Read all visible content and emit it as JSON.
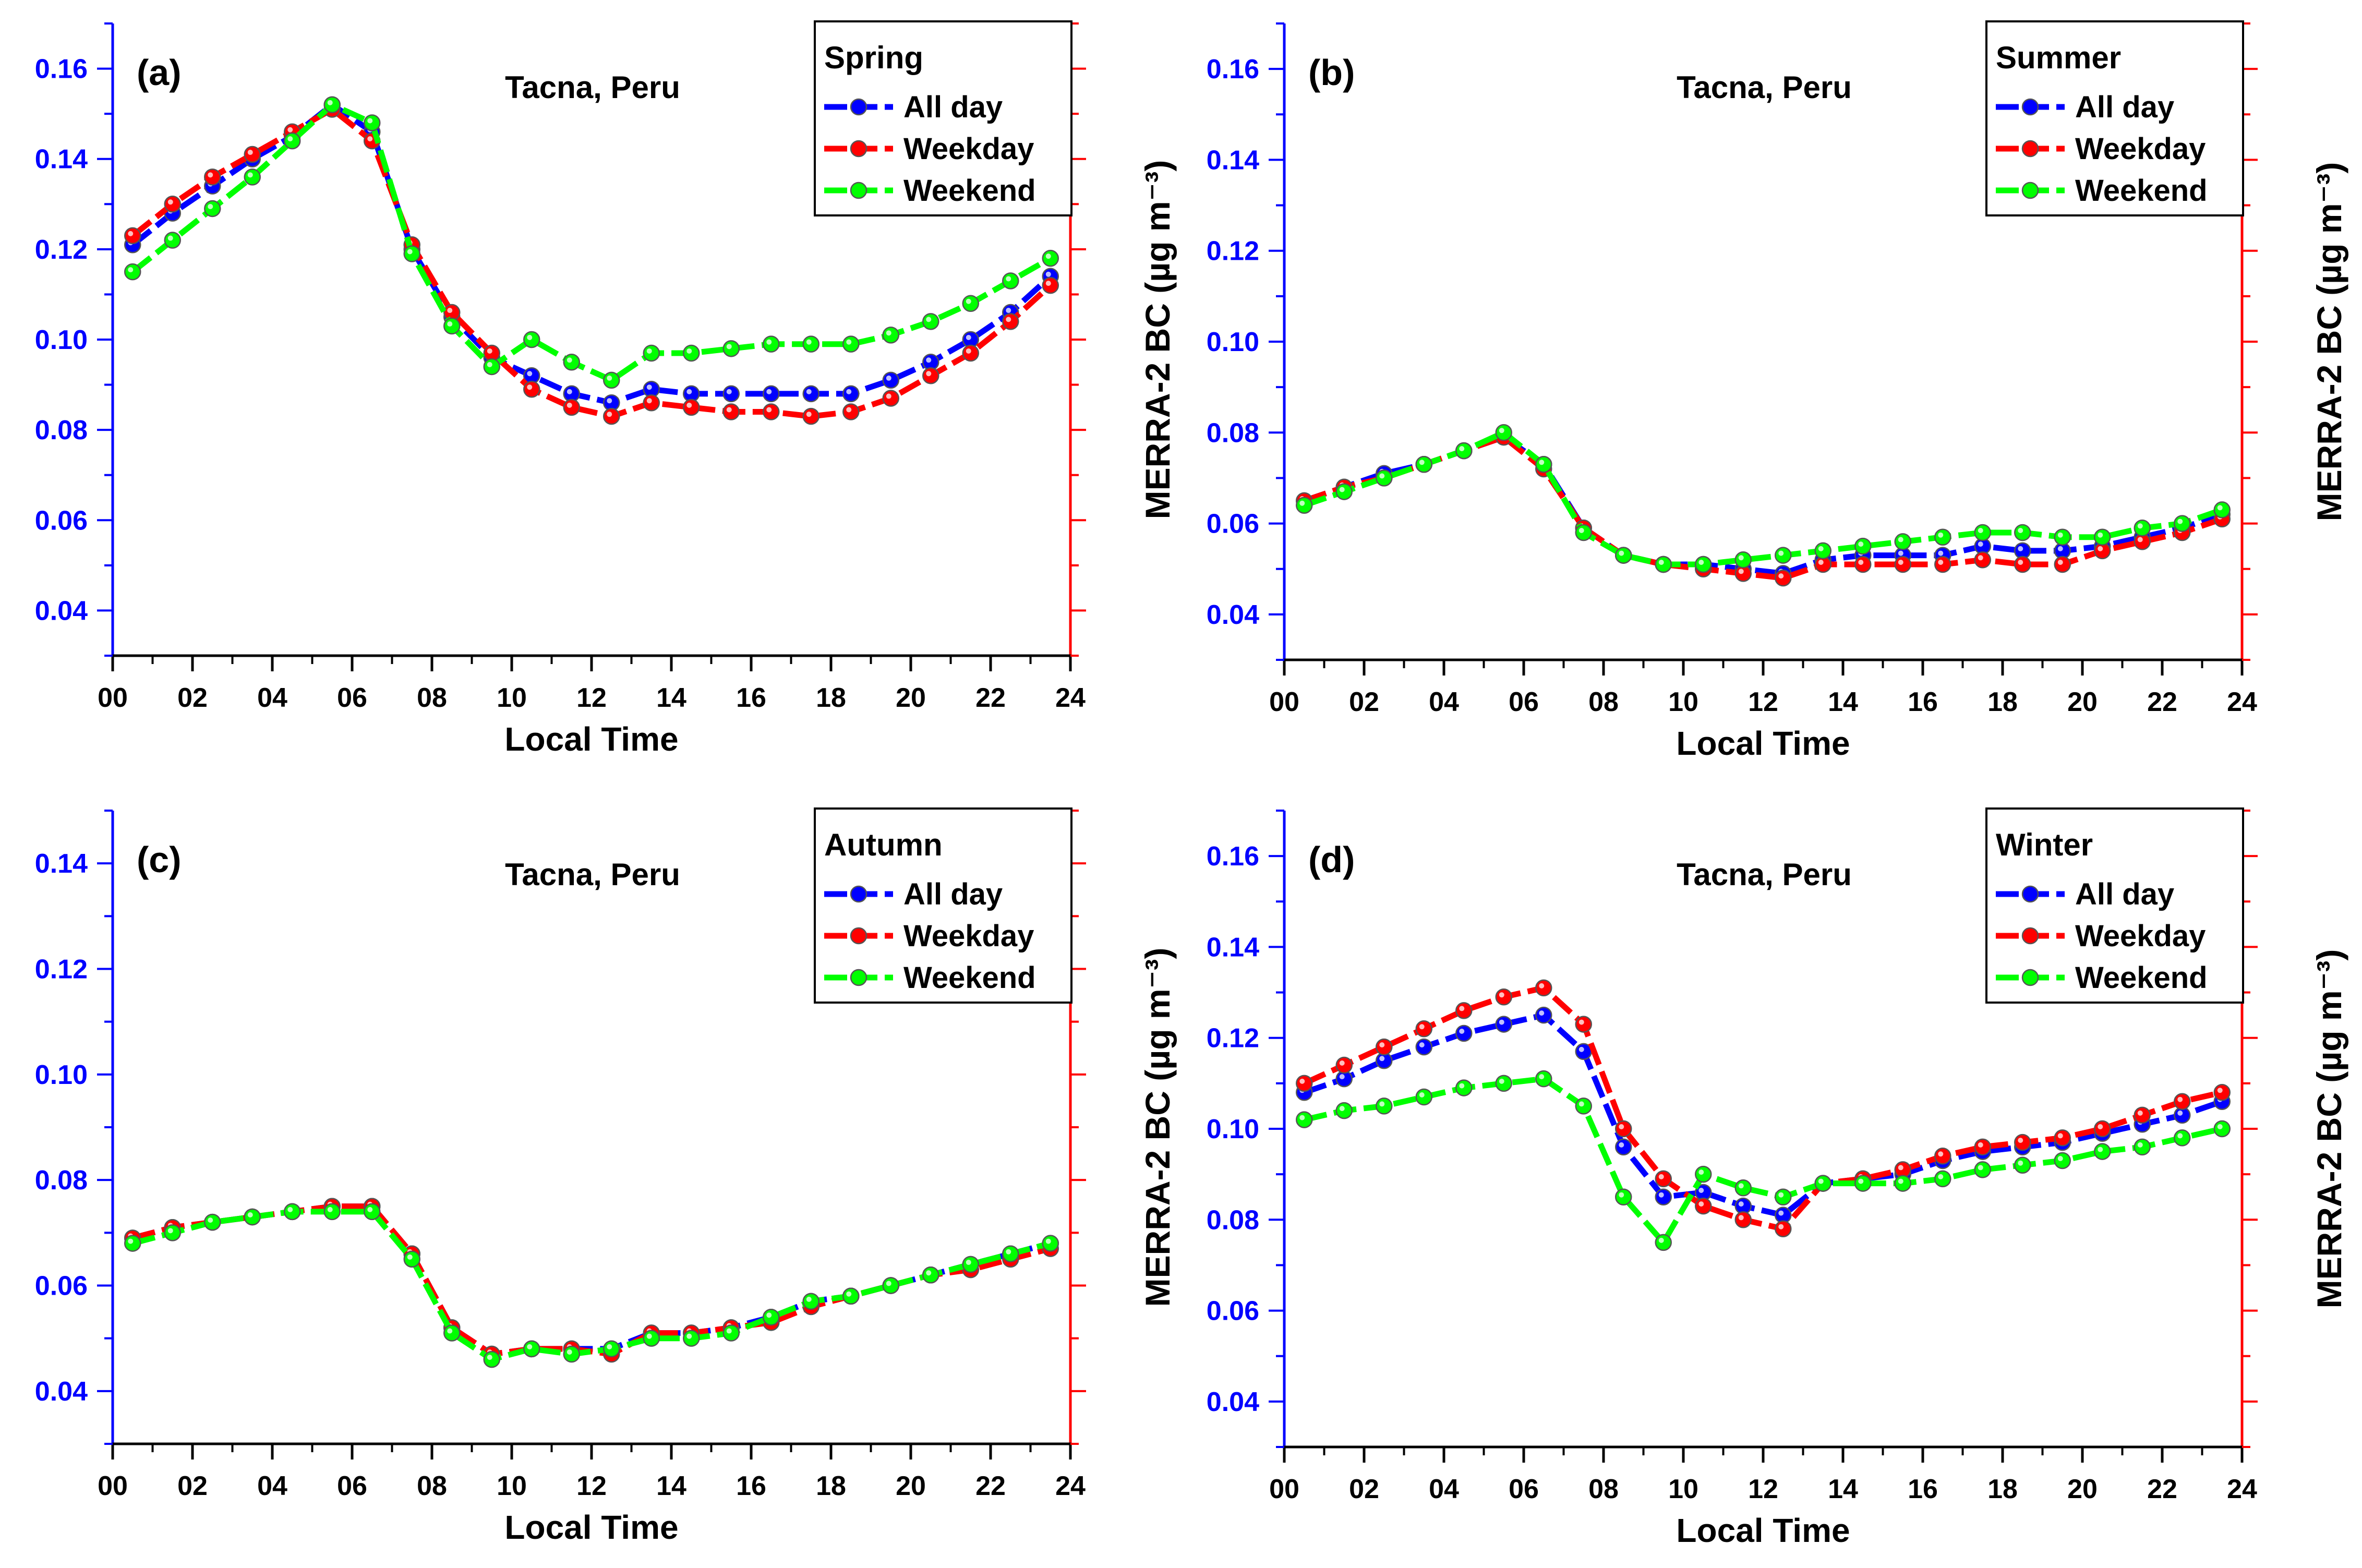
{
  "chart_data": [
    {
      "type": "line",
      "panel_label": "(a)",
      "title": "Tacna, Peru",
      "legend_title": "Spring",
      "xlabel": "Local Time",
      "ylabel": "MERRA-2 BC (µg m⁻³)",
      "xlim": [
        0,
        24
      ],
      "ylim": [
        0.03,
        0.17
      ],
      "xticks": [
        "00",
        "02",
        "04",
        "06",
        "08",
        "10",
        "12",
        "14",
        "16",
        "18",
        "20",
        "22",
        "24"
      ],
      "yticks": [
        "0.04",
        "0.06",
        "0.08",
        "0.10",
        "0.12",
        "0.14",
        "0.16"
      ],
      "x": [
        0.5,
        1.5,
        2.5,
        3.5,
        4.5,
        5.5,
        6.5,
        7.5,
        8.5,
        9.5,
        10.5,
        11.5,
        12.5,
        13.5,
        14.5,
        15.5,
        16.5,
        17.5,
        18.5,
        19.5,
        20.5,
        21.5,
        22.5,
        23.5
      ],
      "series": [
        {
          "name": "All day",
          "color": "#0000ff",
          "values": [
            0.121,
            0.128,
            0.134,
            0.14,
            0.145,
            0.152,
            0.146,
            0.12,
            0.105,
            0.096,
            0.092,
            0.088,
            0.086,
            0.089,
            0.088,
            0.088,
            0.088,
            0.088,
            0.088,
            0.091,
            0.095,
            0.1,
            0.106,
            0.114
          ]
        },
        {
          "name": "Weekday",
          "color": "#ff0000",
          "values": [
            0.123,
            0.13,
            0.136,
            0.141,
            0.146,
            0.151,
            0.144,
            0.121,
            0.106,
            0.097,
            0.089,
            0.085,
            0.083,
            0.086,
            0.085,
            0.084,
            0.084,
            0.083,
            0.084,
            0.087,
            0.092,
            0.097,
            0.104,
            0.112
          ]
        },
        {
          "name": "Weekend",
          "color": "#00ff00",
          "values": [
            0.115,
            0.122,
            0.129,
            0.136,
            0.144,
            0.152,
            0.148,
            0.119,
            0.103,
            0.094,
            0.1,
            0.095,
            0.091,
            0.097,
            0.097,
            0.098,
            0.099,
            0.099,
            0.099,
            0.101,
            0.104,
            0.108,
            0.113,
            0.118
          ]
        }
      ]
    },
    {
      "type": "line",
      "panel_label": "(b)",
      "title": "Tacna, Peru",
      "legend_title": "Summer",
      "xlabel": "Local Time",
      "ylabel": "MERRA-2 BC (µg m⁻³)",
      "xlim": [
        0,
        24
      ],
      "ylim": [
        0.03,
        0.17
      ],
      "xticks": [
        "00",
        "02",
        "04",
        "06",
        "08",
        "10",
        "12",
        "14",
        "16",
        "18",
        "20",
        "22",
        "24"
      ],
      "yticks": [
        "0.04",
        "0.06",
        "0.08",
        "0.10",
        "0.12",
        "0.14",
        "0.16"
      ],
      "x": [
        0.5,
        1.5,
        2.5,
        3.5,
        4.5,
        5.5,
        6.5,
        7.5,
        8.5,
        9.5,
        10.5,
        11.5,
        12.5,
        13.5,
        14.5,
        15.5,
        16.5,
        17.5,
        18.5,
        19.5,
        20.5,
        21.5,
        22.5,
        23.5
      ],
      "series": [
        {
          "name": "All day",
          "color": "#0000ff",
          "values": [
            0.065,
            0.068,
            0.071,
            0.073,
            0.076,
            0.079,
            0.073,
            0.059,
            0.053,
            0.051,
            0.051,
            0.05,
            0.049,
            0.052,
            0.053,
            0.053,
            0.053,
            0.055,
            0.054,
            0.054,
            0.055,
            0.057,
            0.059,
            0.062
          ]
        },
        {
          "name": "Weekday",
          "color": "#ff0000",
          "values": [
            0.065,
            0.068,
            0.07,
            0.073,
            0.076,
            0.079,
            0.072,
            0.059,
            0.053,
            0.051,
            0.05,
            0.049,
            0.048,
            0.051,
            0.051,
            0.051,
            0.051,
            0.052,
            0.051,
            0.051,
            0.054,
            0.056,
            0.058,
            0.061
          ]
        },
        {
          "name": "Weekend",
          "color": "#00ff00",
          "values": [
            0.064,
            0.067,
            0.07,
            0.073,
            0.076,
            0.08,
            0.073,
            0.058,
            0.053,
            0.051,
            0.051,
            0.052,
            0.053,
            0.054,
            0.055,
            0.056,
            0.057,
            0.058,
            0.058,
            0.057,
            0.057,
            0.059,
            0.06,
            0.063
          ]
        }
      ]
    },
    {
      "type": "line",
      "panel_label": "(c)",
      "title": "Tacna, Peru",
      "legend_title": "Autumn",
      "xlabel": "Local Time",
      "ylabel": "MERRA-2 BC (µg m⁻³)",
      "xlim": [
        0,
        24
      ],
      "ylim": [
        0.03,
        0.15
      ],
      "xticks": [
        "00",
        "02",
        "04",
        "06",
        "08",
        "10",
        "12",
        "14",
        "16",
        "18",
        "20",
        "22",
        "24"
      ],
      "yticks": [
        "0.04",
        "0.06",
        "0.08",
        "0.10",
        "0.12",
        "0.14"
      ],
      "x": [
        0.5,
        1.5,
        2.5,
        3.5,
        4.5,
        5.5,
        6.5,
        7.5,
        8.5,
        9.5,
        10.5,
        11.5,
        12.5,
        13.5,
        14.5,
        15.5,
        16.5,
        17.5,
        18.5,
        19.5,
        20.5,
        21.5,
        22.5,
        23.5
      ],
      "series": [
        {
          "name": "All day",
          "color": "#0000ff",
          "values": [
            0.069,
            0.071,
            0.072,
            0.073,
            0.074,
            0.075,
            0.075,
            0.066,
            0.052,
            0.047,
            0.048,
            0.048,
            0.048,
            0.051,
            0.051,
            0.052,
            0.054,
            0.057,
            0.058,
            0.06,
            0.062,
            0.064,
            0.066,
            0.068
          ]
        },
        {
          "name": "Weekday",
          "color": "#ff0000",
          "values": [
            0.069,
            0.071,
            0.072,
            0.073,
            0.074,
            0.075,
            0.075,
            0.066,
            0.052,
            0.047,
            0.048,
            0.048,
            0.047,
            0.051,
            0.051,
            0.052,
            0.053,
            0.056,
            0.058,
            0.06,
            0.062,
            0.063,
            0.065,
            0.067
          ]
        },
        {
          "name": "Weekend",
          "color": "#00ff00",
          "values": [
            0.068,
            0.07,
            0.072,
            0.073,
            0.074,
            0.074,
            0.074,
            0.065,
            0.051,
            0.046,
            0.048,
            0.047,
            0.048,
            0.05,
            0.05,
            0.051,
            0.054,
            0.057,
            0.058,
            0.06,
            0.062,
            0.064,
            0.066,
            0.068
          ]
        }
      ]
    },
    {
      "type": "line",
      "panel_label": "(d)",
      "title": "Tacna, Peru",
      "legend_title": "Winter",
      "xlabel": "Local Time",
      "ylabel": "MERRA-2 BC (µg m⁻³)",
      "xlim": [
        0,
        24
      ],
      "ylim": [
        0.03,
        0.17
      ],
      "xticks": [
        "00",
        "02",
        "04",
        "06",
        "08",
        "10",
        "12",
        "14",
        "16",
        "18",
        "20",
        "22",
        "24"
      ],
      "yticks": [
        "0.04",
        "0.06",
        "0.08",
        "0.10",
        "0.12",
        "0.14",
        "0.16"
      ],
      "x": [
        0.5,
        1.5,
        2.5,
        3.5,
        4.5,
        5.5,
        6.5,
        7.5,
        8.5,
        9.5,
        10.5,
        11.5,
        12.5,
        13.5,
        14.5,
        15.5,
        16.5,
        17.5,
        18.5,
        19.5,
        20.5,
        21.5,
        22.5,
        23.5
      ],
      "series": [
        {
          "name": "All day",
          "color": "#0000ff",
          "values": [
            0.108,
            0.111,
            0.115,
            0.118,
            0.121,
            0.123,
            0.125,
            0.117,
            0.096,
            0.085,
            0.086,
            0.083,
            0.081,
            0.088,
            0.089,
            0.09,
            0.093,
            0.095,
            0.096,
            0.097,
            0.099,
            0.101,
            0.103,
            0.106
          ]
        },
        {
          "name": "Weekday",
          "color": "#ff0000",
          "values": [
            0.11,
            0.114,
            0.118,
            0.122,
            0.126,
            0.129,
            0.131,
            0.123,
            0.1,
            0.089,
            0.083,
            0.08,
            0.078,
            0.088,
            0.089,
            0.091,
            0.094,
            0.096,
            0.097,
            0.098,
            0.1,
            0.103,
            0.106,
            0.108
          ]
        },
        {
          "name": "Weekend",
          "color": "#00ff00",
          "values": [
            0.102,
            0.104,
            0.105,
            0.107,
            0.109,
            0.11,
            0.111,
            0.105,
            0.085,
            0.075,
            0.09,
            0.087,
            0.085,
            0.088,
            0.088,
            0.088,
            0.089,
            0.091,
            0.092,
            0.093,
            0.095,
            0.096,
            0.098,
            0.1
          ]
        }
      ]
    }
  ]
}
